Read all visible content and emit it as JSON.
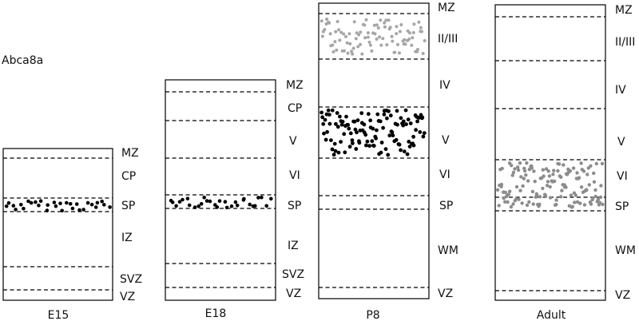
{
  "gene": "Abca8a",
  "colors": {
    "dots_dark": "#000000",
    "dots_light": "#a6a6a6",
    "dots_mid": "#8c8c8c"
  },
  "columns": [
    {
      "stage": "E15",
      "layers": [
        "MZ",
        "CP",
        "SP",
        "IZ",
        "SVZ",
        "VZ"
      ],
      "expression": [
        {
          "layer": "SP",
          "level": "strong"
        }
      ]
    },
    {
      "stage": "E18",
      "layers": [
        "MZ",
        "CP",
        "V",
        "VI",
        "SP",
        "IZ",
        "SVZ",
        "VZ"
      ],
      "expression": [
        {
          "layer": "SP",
          "level": "strong"
        }
      ]
    },
    {
      "stage": "P8",
      "layers": [
        "MZ",
        "II/III",
        "IV",
        "V",
        "VI",
        "SP",
        "WM",
        "VZ"
      ],
      "expression": [
        {
          "layer": "II/III",
          "level": "weak"
        },
        {
          "layer": "V",
          "level": "strong"
        }
      ]
    },
    {
      "stage": "Adult",
      "layers": [
        "MZ",
        "II/III",
        "IV",
        "V",
        "VI",
        "SP",
        "WM",
        "VZ"
      ],
      "expression": [
        {
          "layer": "VI",
          "level": "moderate"
        }
      ]
    }
  ]
}
